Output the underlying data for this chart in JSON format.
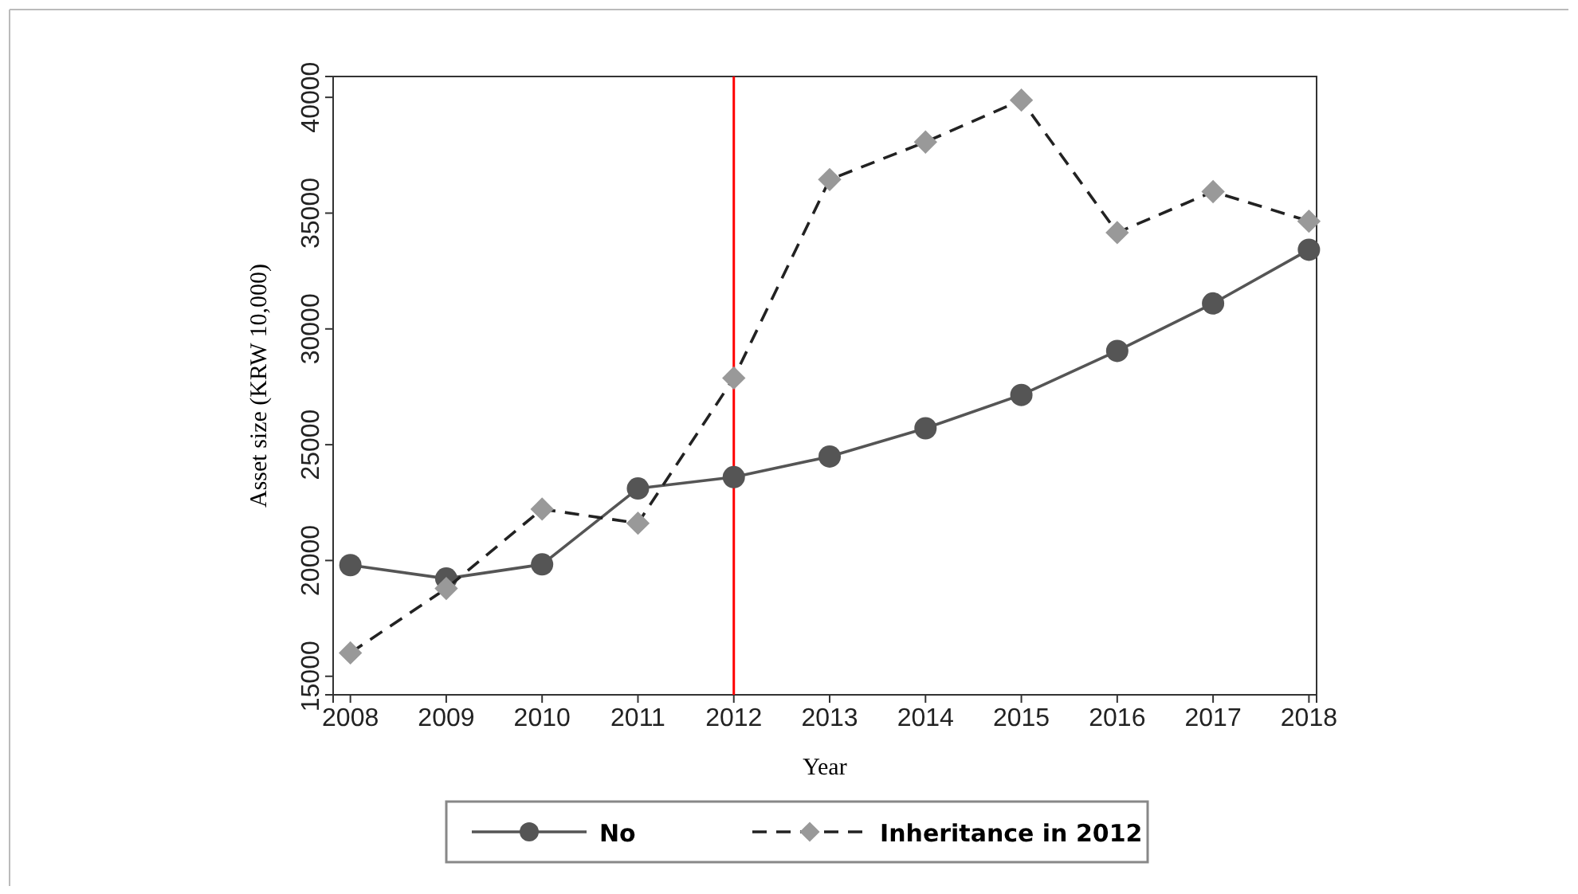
{
  "chart_data": {
    "type": "line",
    "xlabel": "Year",
    "ylabel": "Asset size (KRW 10,000)",
    "x": [
      2008,
      2009,
      2010,
      2011,
      2012,
      2013,
      2014,
      2015,
      2016,
      2017,
      2018
    ],
    "xlim": [
      2007.82,
      2018.08
    ],
    "xticks": [
      2008,
      2009,
      2010,
      2011,
      2012,
      2013,
      2014,
      2015,
      2016,
      2017,
      2018
    ],
    "ylim": [
      14200,
      40900
    ],
    "yticks": [
      15000,
      20000,
      25000,
      30000,
      35000,
      40000
    ],
    "series": [
      {
        "name": "No",
        "color": "#555555",
        "marker": "circle",
        "line_style": "solid",
        "values": [
          19800,
          19220,
          19830,
          23110,
          23600,
          24490,
          25710,
          27150,
          29050,
          31100,
          33420
        ]
      },
      {
        "name": "Inheritance in 2012",
        "color": "#999999",
        "marker": "diamond",
        "line_style": "dashed",
        "values": [
          16010,
          18790,
          22220,
          21610,
          27880,
          36450,
          38070,
          39880,
          34160,
          35930,
          34650
        ]
      }
    ],
    "ref_lines": [
      {
        "axis": "x",
        "value": 2012,
        "color": "#ff0000"
      }
    ],
    "grid": false,
    "legend": "bottom"
  }
}
